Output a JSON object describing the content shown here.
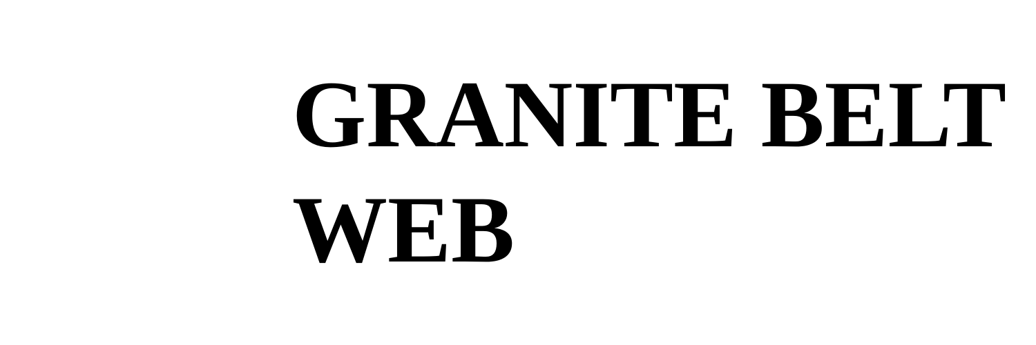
{
  "heading": {
    "line1": "GRANITE BELT",
    "line2": "WEB"
  }
}
